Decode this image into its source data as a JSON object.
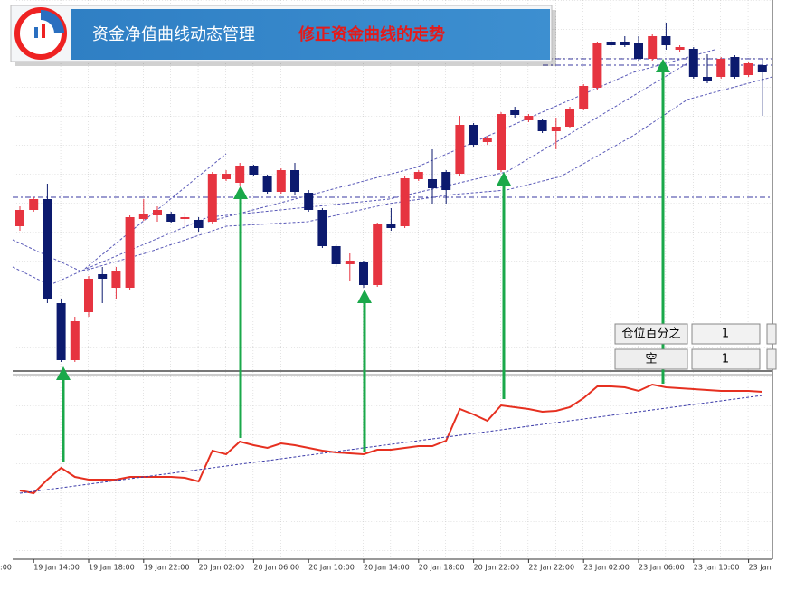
{
  "header": {
    "title": "资金净值曲线动态管理",
    "subtitle": "修正资金曲线的走势"
  },
  "panel": {
    "rows": [
      {
        "label": "仓位百分之",
        "value": 1
      },
      {
        "label": "空",
        "value": 1
      }
    ]
  },
  "chart_data": [
    {
      "type": "candlestick",
      "up_color": "#e63440",
      "down_color": "#0c1a6e",
      "ylim": [
        0,
        410
      ],
      "open": [
        160,
        178,
        190,
        75,
        12,
        65,
        107,
        92,
        92,
        168,
        172,
        174,
        168,
        167,
        165,
        212,
        208,
        227,
        215,
        198,
        222,
        197,
        178,
        138,
        118,
        120,
        95,
        162,
        160,
        212,
        212,
        220,
        218,
        272,
        253,
        222,
        288,
        277,
        277,
        265,
        270,
        290,
        313,
        364,
        364,
        362,
        345,
        370,
        355,
        356,
        325,
        325,
        347,
        327,
        338
      ],
      "high": [
        182,
        192,
        207,
        80,
        60,
        105,
        115,
        115,
        172,
        190,
        182,
        176,
        175,
        170,
        220,
        222,
        230,
        228,
        217,
        224,
        230,
        200,
        180,
        140,
        130,
        122,
        164,
        180,
        215,
        222,
        245,
        222,
        282,
        274,
        260,
        286,
        292,
        284,
        279,
        280,
        292,
        317,
        364,
        366,
        370,
        370,
        372,
        385,
        360,
        358,
        350,
        347,
        349,
        342,
        345
      ],
      "low": [
        155,
        176,
        75,
        10,
        10,
        60,
        75,
        80,
        90,
        166,
        165,
        164,
        160,
        154,
        163,
        210,
        205,
        215,
        196,
        196,
        195,
        176,
        136,
        115,
        100,
        92,
        93,
        155,
        158,
        210,
        185,
        185,
        215,
        248,
        250,
        220,
        280,
        275,
        263,
        245,
        268,
        288,
        311,
        358,
        358,
        343,
        343,
        355,
        353,
        323,
        318,
        323,
        323,
        325,
        282
      ],
      "close": [
        178,
        190,
        80,
        12,
        55,
        102,
        102,
        110,
        170,
        174,
        178,
        165,
        170,
        158,
        218,
        218,
        227,
        217,
        198,
        222,
        198,
        178,
        138,
        118,
        122,
        95,
        162,
        158,
        213,
        220,
        202,
        200,
        272,
        250,
        258,
        284,
        283,
        282,
        265,
        270,
        290,
        315,
        362,
        360,
        360,
        345,
        370,
        360,
        358,
        325,
        320,
        345,
        325,
        340,
        330
      ]
    },
    {
      "type": "line",
      "ylim": [
        0,
        200
      ],
      "x_edge_label": ":00",
      "categories": [
        null,
        "19 Jan 14:00",
        null,
        null,
        null,
        "19 Jan 18:00",
        null,
        null,
        null,
        "19 Jan 22:00",
        null,
        null,
        null,
        "20 Jan 02:00",
        null,
        null,
        null,
        "20 Jan 06:00",
        null,
        null,
        null,
        "20 Jan 10:00",
        null,
        null,
        null,
        "20 Jan 14:00",
        null,
        null,
        null,
        "20 Jan 18:00",
        null,
        null,
        null,
        "20 Jan 22:00",
        null,
        null,
        null,
        "22 Jan 22:00",
        null,
        null,
        null,
        "23 Jan 02:00",
        null,
        null,
        null,
        "23 Jan 06:00",
        null,
        null,
        null,
        "23 Jan 10:00",
        null,
        null,
        null,
        "23 Jan",
        null
      ],
      "series": [
        {
          "color": "#e63020",
          "dashed": false,
          "values": [
            73,
            70,
            85,
            98,
            88,
            85,
            85,
            85,
            88,
            88,
            88,
            88,
            87,
            83,
            117,
            113,
            127,
            123,
            120,
            125,
            123,
            120,
            117,
            115,
            114,
            113,
            118,
            118,
            120,
            122,
            122,
            128,
            163,
            157,
            150,
            167,
            165,
            163,
            160,
            161,
            165,
            175,
            188,
            188,
            187,
            183,
            190,
            187,
            186,
            185,
            184,
            183,
            183,
            183,
            182
          ]
        },
        {
          "color": "#3a3aa8",
          "dashed": true,
          "values": [
            70,
            72,
            74,
            76,
            78,
            80,
            82,
            84,
            86,
            88,
            90,
            92,
            94,
            96,
            98,
            100,
            102,
            104,
            106,
            108,
            110,
            112,
            114,
            116,
            118,
            120,
            122,
            124,
            126,
            128,
            130,
            132,
            134,
            136,
            138,
            140,
            142,
            144,
            146,
            148,
            150,
            152,
            154,
            156,
            158,
            160,
            162,
            164,
            166,
            168,
            170,
            172,
            174,
            176,
            178
          ]
        }
      ]
    }
  ]
}
